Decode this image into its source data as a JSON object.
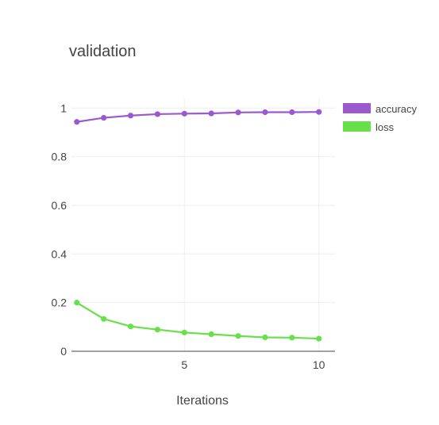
{
  "chart_data": {
    "type": "line",
    "title": "validation",
    "xlabel": "Iterations",
    "ylabel": "",
    "xlim": [
      0.8,
      10.6
    ],
    "ylim": [
      0,
      1.04
    ],
    "x_ticks": [
      5,
      10
    ],
    "y_ticks": [
      0,
      0.2,
      0.4,
      0.6,
      0.8,
      1
    ],
    "y_tick_labels": [
      "0",
      "0.2",
      "0.4",
      "0.6",
      "0.8",
      "1"
    ],
    "x_tick_labels": [
      "5",
      "10"
    ],
    "grid": true,
    "legend_position": "top-right",
    "series": [
      {
        "name": "accuracy",
        "color": "#9b59d0",
        "x": [
          1,
          2,
          3,
          4,
          5,
          6,
          7,
          8,
          9,
          10
        ],
        "y": [
          0.943,
          0.96,
          0.969,
          0.975,
          0.977,
          0.978,
          0.982,
          0.983,
          0.983,
          0.984
        ]
      },
      {
        "name": "loss",
        "color": "#66e14a",
        "x": [
          1,
          2,
          3,
          4,
          5,
          6,
          7,
          8,
          9,
          10
        ],
        "y": [
          0.2,
          0.133,
          0.102,
          0.089,
          0.077,
          0.07,
          0.063,
          0.057,
          0.056,
          0.052
        ]
      }
    ]
  }
}
